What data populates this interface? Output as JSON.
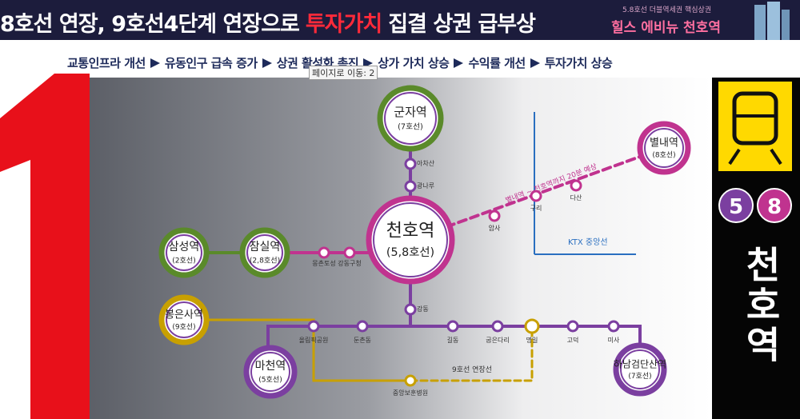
{
  "header": {
    "title": {
      "lead": "8호선 연장, 9호선4단계 연장으로",
      "highlight": "투자가치",
      "tail": "집결 상권 급부상"
    },
    "tagline": "5.8호선 더블역세권 핵심상권",
    "brand": "힐스 에비뉴  천호역"
  },
  "flow": [
    "교통인프라 개선",
    "유동인구 급속 증가",
    "상권 활성화 촉진",
    "상가 가치 상승",
    "수익률 개선",
    "투자가치 상승"
  ],
  "tooltip": "페이지로 이동: 2",
  "map": {
    "major_stations": [
      {
        "name": "군자역",
        "line": "(7호선)"
      },
      {
        "name": "천호역",
        "line": "(5,8호선)"
      },
      {
        "name": "잠실역",
        "line": "(2,8호선)"
      },
      {
        "name": "삼성역",
        "line": "(2호선)"
      },
      {
        "name": "별내역",
        "line": "(8호선)"
      },
      {
        "name": "봉은사역",
        "line": "(9호선)"
      },
      {
        "name": "마천역",
        "line": "(5호선)"
      },
      {
        "name": "하남검단산역",
        "line": "(7호선)"
      }
    ],
    "minor_stations": [
      "아차산",
      "광나루",
      "몽촌토성",
      "강동구청",
      "강동",
      "암사",
      "구리",
      "다산",
      "올림픽공원",
      "둔촌동",
      "길동",
      "굽은다리",
      "명일",
      "고덕",
      "미사",
      "중앙보훈병원"
    ],
    "annotations": {
      "travel_time": "별내역 ~ 천호역까지 20분 예상",
      "ktx": "KTX 중앙선",
      "line9_extension": "9호선 연장선"
    }
  },
  "side": {
    "lines": [
      "5",
      "8"
    ],
    "station": "천호역"
  }
}
